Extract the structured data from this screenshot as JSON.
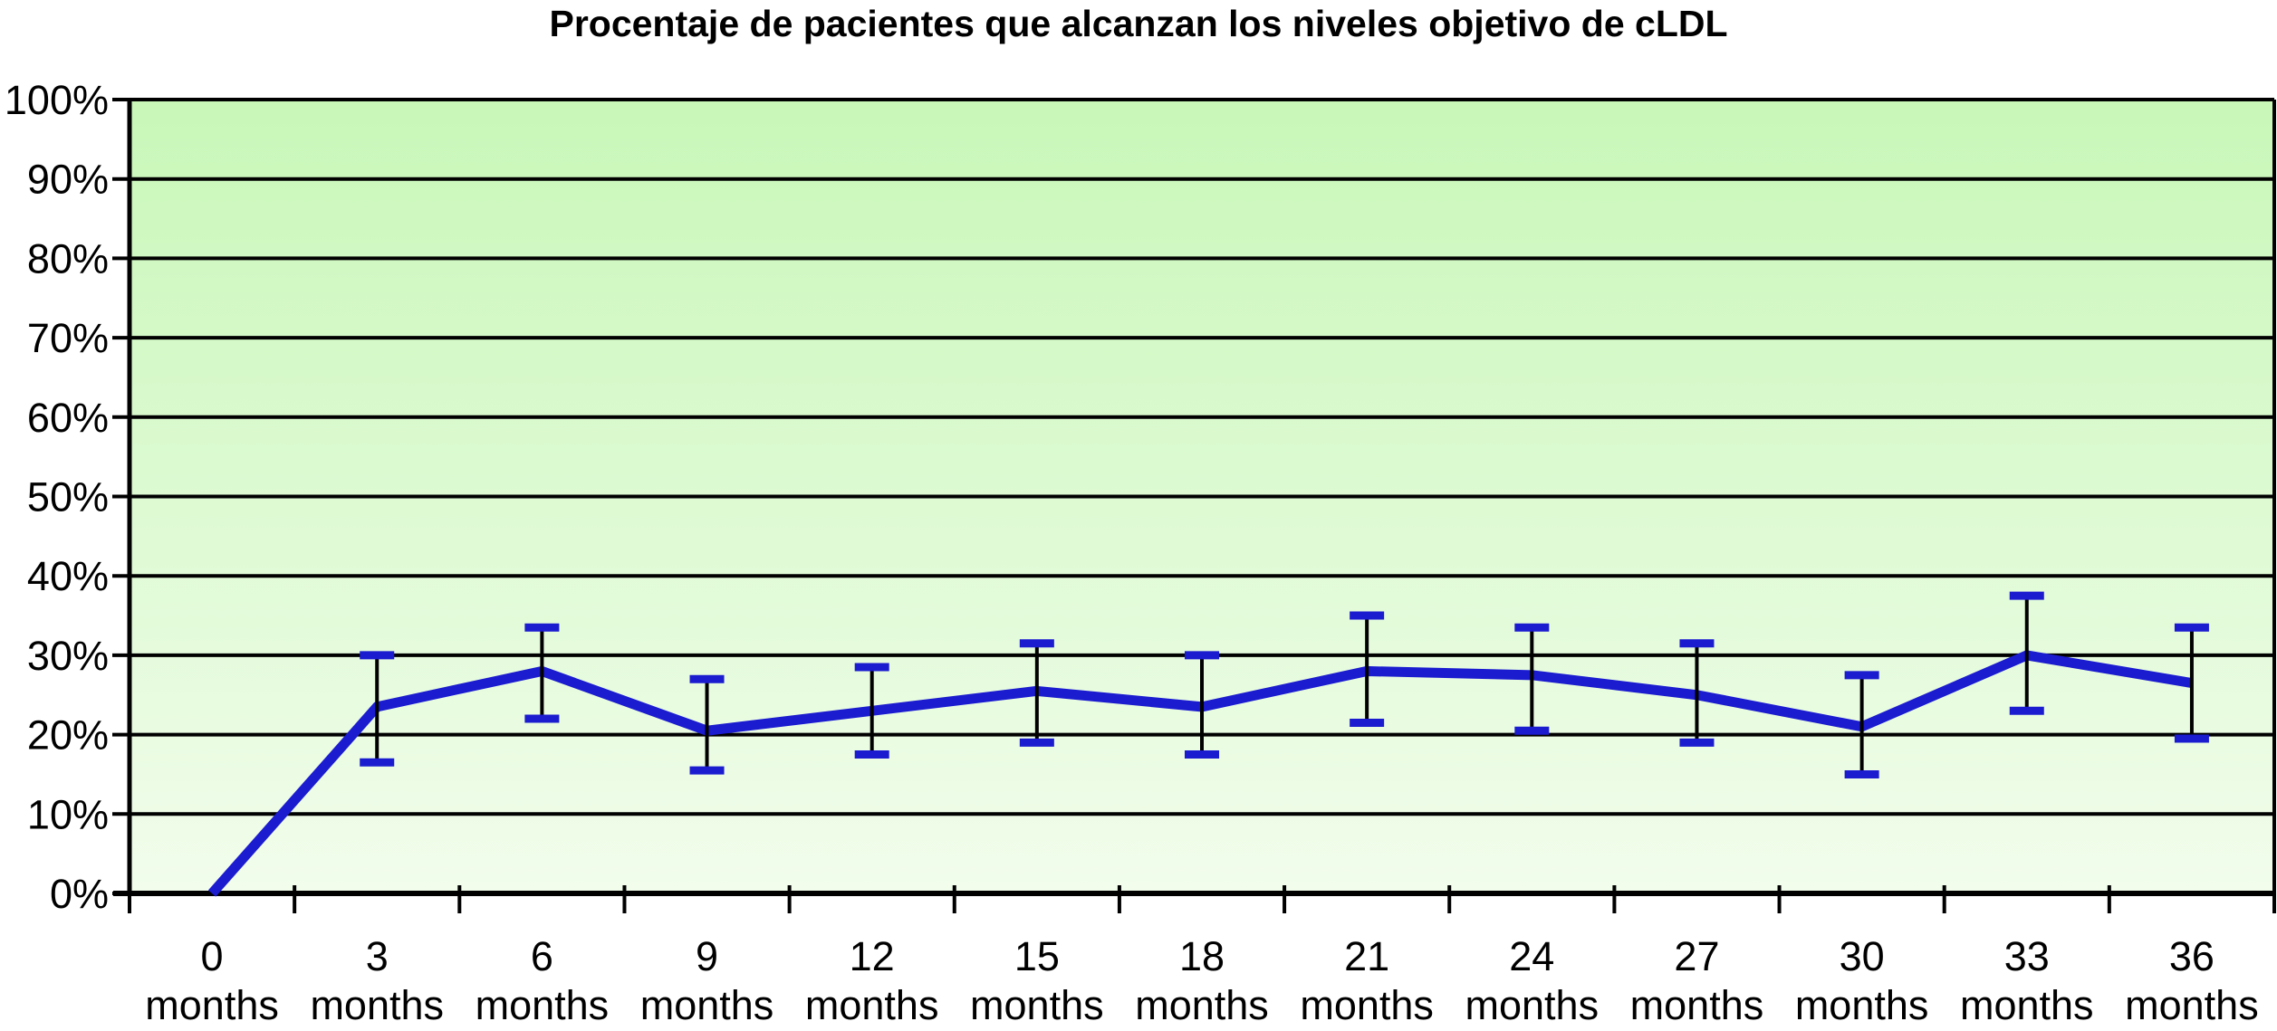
{
  "page": {
    "background_color": "#ffffff"
  },
  "chart_data": {
    "type": "line",
    "title": "Procentaje de pacientes que alcanzan los niveles objetivo de cLDL",
    "xlabel": "",
    "ylabel": "",
    "categories": [
      "0 months",
      "3 months",
      "6 months",
      "9 months",
      "12 months",
      "15 months",
      "18 months",
      "21 months",
      "24 months",
      "27 months",
      "30 months",
      "33 months",
      "36 months"
    ],
    "y_tick_labels": [
      "0%",
      "10%",
      "20%",
      "30%",
      "40%",
      "50%",
      "60%",
      "70%",
      "80%",
      "90%",
      "100%"
    ],
    "ylim": [
      0,
      100
    ],
    "grid": true,
    "legend_position": "none",
    "series": [
      {
        "values": [
          0,
          23.5,
          28,
          20.5,
          23,
          25.5,
          23.5,
          28,
          27.5,
          25,
          21,
          30,
          26.5
        ],
        "error_low": [
          null,
          16.5,
          22,
          15.5,
          17.5,
          19,
          17.5,
          21.5,
          20.5,
          19,
          15,
          23,
          19.5
        ],
        "error_high": [
          null,
          30,
          33.5,
          27,
          28.5,
          31.5,
          30,
          35,
          33.5,
          31.5,
          27.5,
          37.5,
          33.5
        ]
      }
    ],
    "colors": {
      "line": "#1b1bd0",
      "error_bar_stem": "#000000",
      "error_bar_cap": "#1b1bd0",
      "axis": "#000000",
      "gridline": "#000000",
      "plot_bg_top": "#c8f7b8",
      "plot_bg_bottom": "#f2fdec",
      "text": "#000000"
    }
  }
}
